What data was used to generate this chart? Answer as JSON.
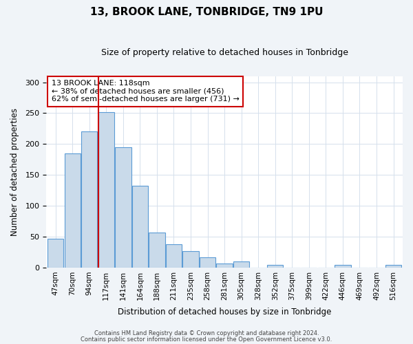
{
  "title": "13, BROOK LANE, TONBRIDGE, TN9 1PU",
  "subtitle": "Size of property relative to detached houses in Tonbridge",
  "xlabel": "Distribution of detached houses by size in Tonbridge",
  "ylabel": "Number of detached properties",
  "bar_labels": [
    "47sqm",
    "70sqm",
    "94sqm",
    "117sqm",
    "141sqm",
    "164sqm",
    "188sqm",
    "211sqm",
    "235sqm",
    "258sqm",
    "281sqm",
    "305sqm",
    "328sqm",
    "352sqm",
    "375sqm",
    "399sqm",
    "422sqm",
    "446sqm",
    "469sqm",
    "492sqm",
    "516sqm"
  ],
  "bar_heights": [
    47,
    185,
    220,
    252,
    195,
    132,
    57,
    38,
    27,
    17,
    7,
    10,
    0,
    4,
    0,
    0,
    0,
    4,
    0,
    0,
    4
  ],
  "bar_color": "#c9daea",
  "bar_edge_color": "#5b9bd5",
  "highlight_bar_index": 3,
  "vline_color": "#cc0000",
  "annotation_title": "13 BROOK LANE: 118sqm",
  "annotation_line1": "← 38% of detached houses are smaller (456)",
  "annotation_line2": "62% of semi-detached houses are larger (731) →",
  "annotation_box_edge_color": "#cc0000",
  "ylim": [
    0,
    310
  ],
  "yticks": [
    0,
    50,
    100,
    150,
    200,
    250,
    300
  ],
  "footer1": "Contains HM Land Registry data © Crown copyright and database right 2024.",
  "footer2": "Contains public sector information licensed under the Open Government Licence v3.0.",
  "background_color": "#f0f4f8",
  "plot_background": "#ffffff",
  "grid_color": "#d5e0ec"
}
